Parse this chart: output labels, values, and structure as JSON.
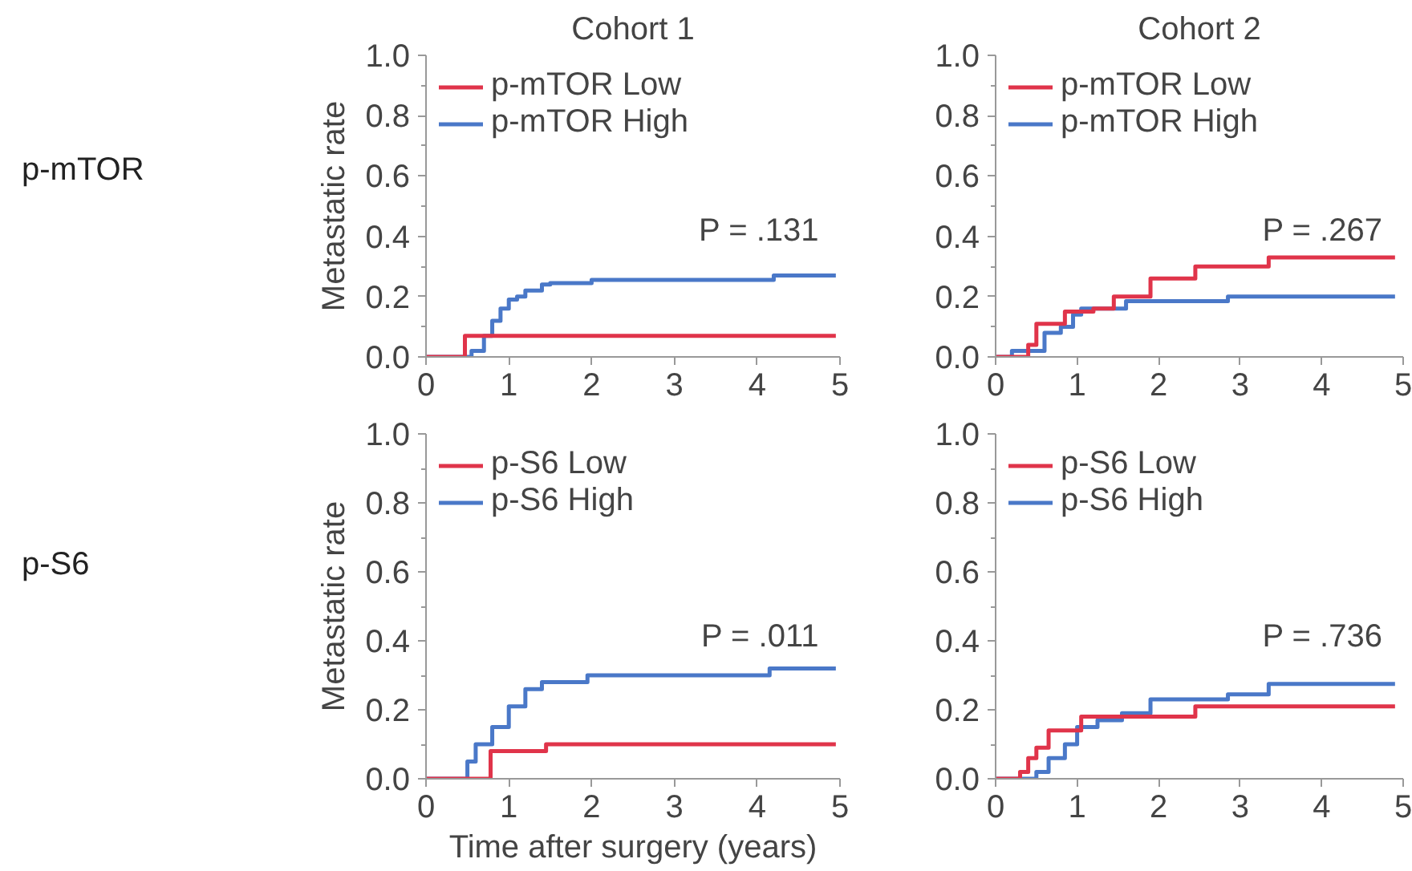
{
  "chart_data": [
    {
      "type": "step",
      "title": "Cohort 1",
      "ylabel": "Metastatic rate",
      "annotations": [
        "P = .131",
        "p-mTOR"
      ],
      "xlim": [
        0,
        5
      ],
      "xticks": [
        0,
        1,
        2,
        3,
        4,
        5
      ],
      "ylim": [
        0,
        1
      ],
      "yticks": [
        {
          "value": 0,
          "label": "0.0"
        },
        {
          "value": 0.2,
          "label": "0.2"
        },
        {
          "value": 0.4,
          "label": "0.4"
        },
        {
          "value": 0.6,
          "label": "0.6"
        },
        {
          "value": 0.8,
          "label": "0.8"
        },
        {
          "value": 1,
          "label": "1.0"
        }
      ],
      "grid": false,
      "legend": "top left",
      "series": [
        {
          "name": "p-mTOR Low",
          "color": "#e0344a",
          "x": [
            0,
            0.47,
            3.55,
            4.65,
            4.95
          ],
          "values": [
            0,
            0.07,
            0.07,
            0.07,
            0.07
          ]
        },
        {
          "name": "p-mTOR High",
          "color": "#4a78c8",
          "x": [
            0,
            0.5,
            0.55,
            0.7,
            0.8,
            0.9,
            1.0,
            1.1,
            1.2,
            1.4,
            1.5,
            2.0,
            4.2,
            4.95
          ],
          "values": [
            0,
            0,
            0.02,
            0.07,
            0.12,
            0.16,
            0.19,
            0.2,
            0.22,
            0.24,
            0.245,
            0.255,
            0.27,
            0.27
          ]
        }
      ]
    },
    {
      "type": "step",
      "title": "Cohort 2",
      "annotations": [
        "P = .267"
      ],
      "xlim": [
        0,
        5
      ],
      "xticks": [
        0,
        1,
        2,
        3,
        4,
        5
      ],
      "ylim": [
        0,
        1
      ],
      "yticks": [
        {
          "value": 0,
          "label": "0.0"
        },
        {
          "value": 0.2,
          "label": "0.2"
        },
        {
          "value": 0.4,
          "label": "0.4"
        },
        {
          "value": 0.6,
          "label": "0.6"
        },
        {
          "value": 0.8,
          "label": "0.8"
        },
        {
          "value": 1,
          "label": "1.0"
        }
      ],
      "grid": false,
      "legend": "top left",
      "series": [
        {
          "name": "p-mTOR Low",
          "color": "#e0344a",
          "x": [
            0,
            0.35,
            0.4,
            0.5,
            0.85,
            1.2,
            1.45,
            1.9,
            2.45,
            3.35,
            4.9
          ],
          "values": [
            0,
            0,
            0.04,
            0.11,
            0.15,
            0.16,
            0.2,
            0.26,
            0.3,
            0.33,
            0.33
          ]
        },
        {
          "name": "p-mTOR High",
          "color": "#4a78c8",
          "x": [
            0,
            0.2,
            0.6,
            0.8,
            0.95,
            1.05,
            1.6,
            2.85,
            4.9
          ],
          "values": [
            0,
            0.02,
            0.08,
            0.1,
            0.14,
            0.16,
            0.185,
            0.2,
            0.2
          ]
        }
      ]
    },
    {
      "type": "step",
      "ylabel": "Metastatic rate",
      "xlabel": "Time after surgery (years)",
      "annotations": [
        "P = .011",
        "p-S6"
      ],
      "xlim": [
        0,
        5
      ],
      "xticks": [
        0,
        1,
        2,
        3,
        4,
        5
      ],
      "ylim": [
        0,
        1
      ],
      "yticks": [
        {
          "value": 0,
          "label": "0.0"
        },
        {
          "value": 0.2,
          "label": "0.2"
        },
        {
          "value": 0.4,
          "label": "0.4"
        },
        {
          "value": 0.6,
          "label": "0.6"
        },
        {
          "value": 0.8,
          "label": "0.8"
        },
        {
          "value": 1,
          "label": "1.0"
        }
      ],
      "grid": false,
      "legend": "top left",
      "series": [
        {
          "name": "p-S6 Low",
          "color": "#e0344a",
          "x": [
            0,
            0.75,
            0.78,
            1.45,
            4.95
          ],
          "values": [
            0,
            0,
            0.08,
            0.1,
            0.1
          ]
        },
        {
          "name": "p-S6 High",
          "color": "#4a78c8",
          "x": [
            0,
            0.48,
            0.5,
            0.6,
            0.8,
            1.0,
            1.2,
            1.4,
            1.95,
            4.15,
            4.95
          ],
          "values": [
            0,
            0,
            0.05,
            0.1,
            0.15,
            0.21,
            0.26,
            0.28,
            0.3,
            0.32,
            0.32
          ]
        }
      ]
    },
    {
      "type": "step",
      "annotations": [
        "P = .736"
      ],
      "xlim": [
        0,
        5
      ],
      "xticks": [
        0,
        1,
        2,
        3,
        4,
        5
      ],
      "ylim": [
        0,
        1
      ],
      "yticks": [
        {
          "value": 0,
          "label": "0.0"
        },
        {
          "value": 0.2,
          "label": "0.2"
        },
        {
          "value": 0.4,
          "label": "0.4"
        },
        {
          "value": 0.6,
          "label": "0.6"
        },
        {
          "value": 0.8,
          "label": "0.8"
        },
        {
          "value": 1,
          "label": "1.0"
        }
      ],
      "grid": false,
      "legend": "top left",
      "series": [
        {
          "name": "p-S6 Low",
          "color": "#e0344a",
          "x": [
            0,
            0.3,
            0.4,
            0.5,
            0.65,
            1.05,
            2.45,
            4.9
          ],
          "values": [
            0,
            0.02,
            0.06,
            0.09,
            0.14,
            0.18,
            0.21,
            0.21
          ]
        },
        {
          "name": "p-S6 High",
          "color": "#4a78c8",
          "x": [
            0,
            0.48,
            0.5,
            0.65,
            0.85,
            1.0,
            1.25,
            1.55,
            1.9,
            2.85,
            3.35,
            4.9
          ],
          "values": [
            0,
            0,
            0.02,
            0.06,
            0.1,
            0.15,
            0.17,
            0.19,
            0.23,
            0.245,
            0.275,
            0.275
          ]
        }
      ]
    }
  ]
}
